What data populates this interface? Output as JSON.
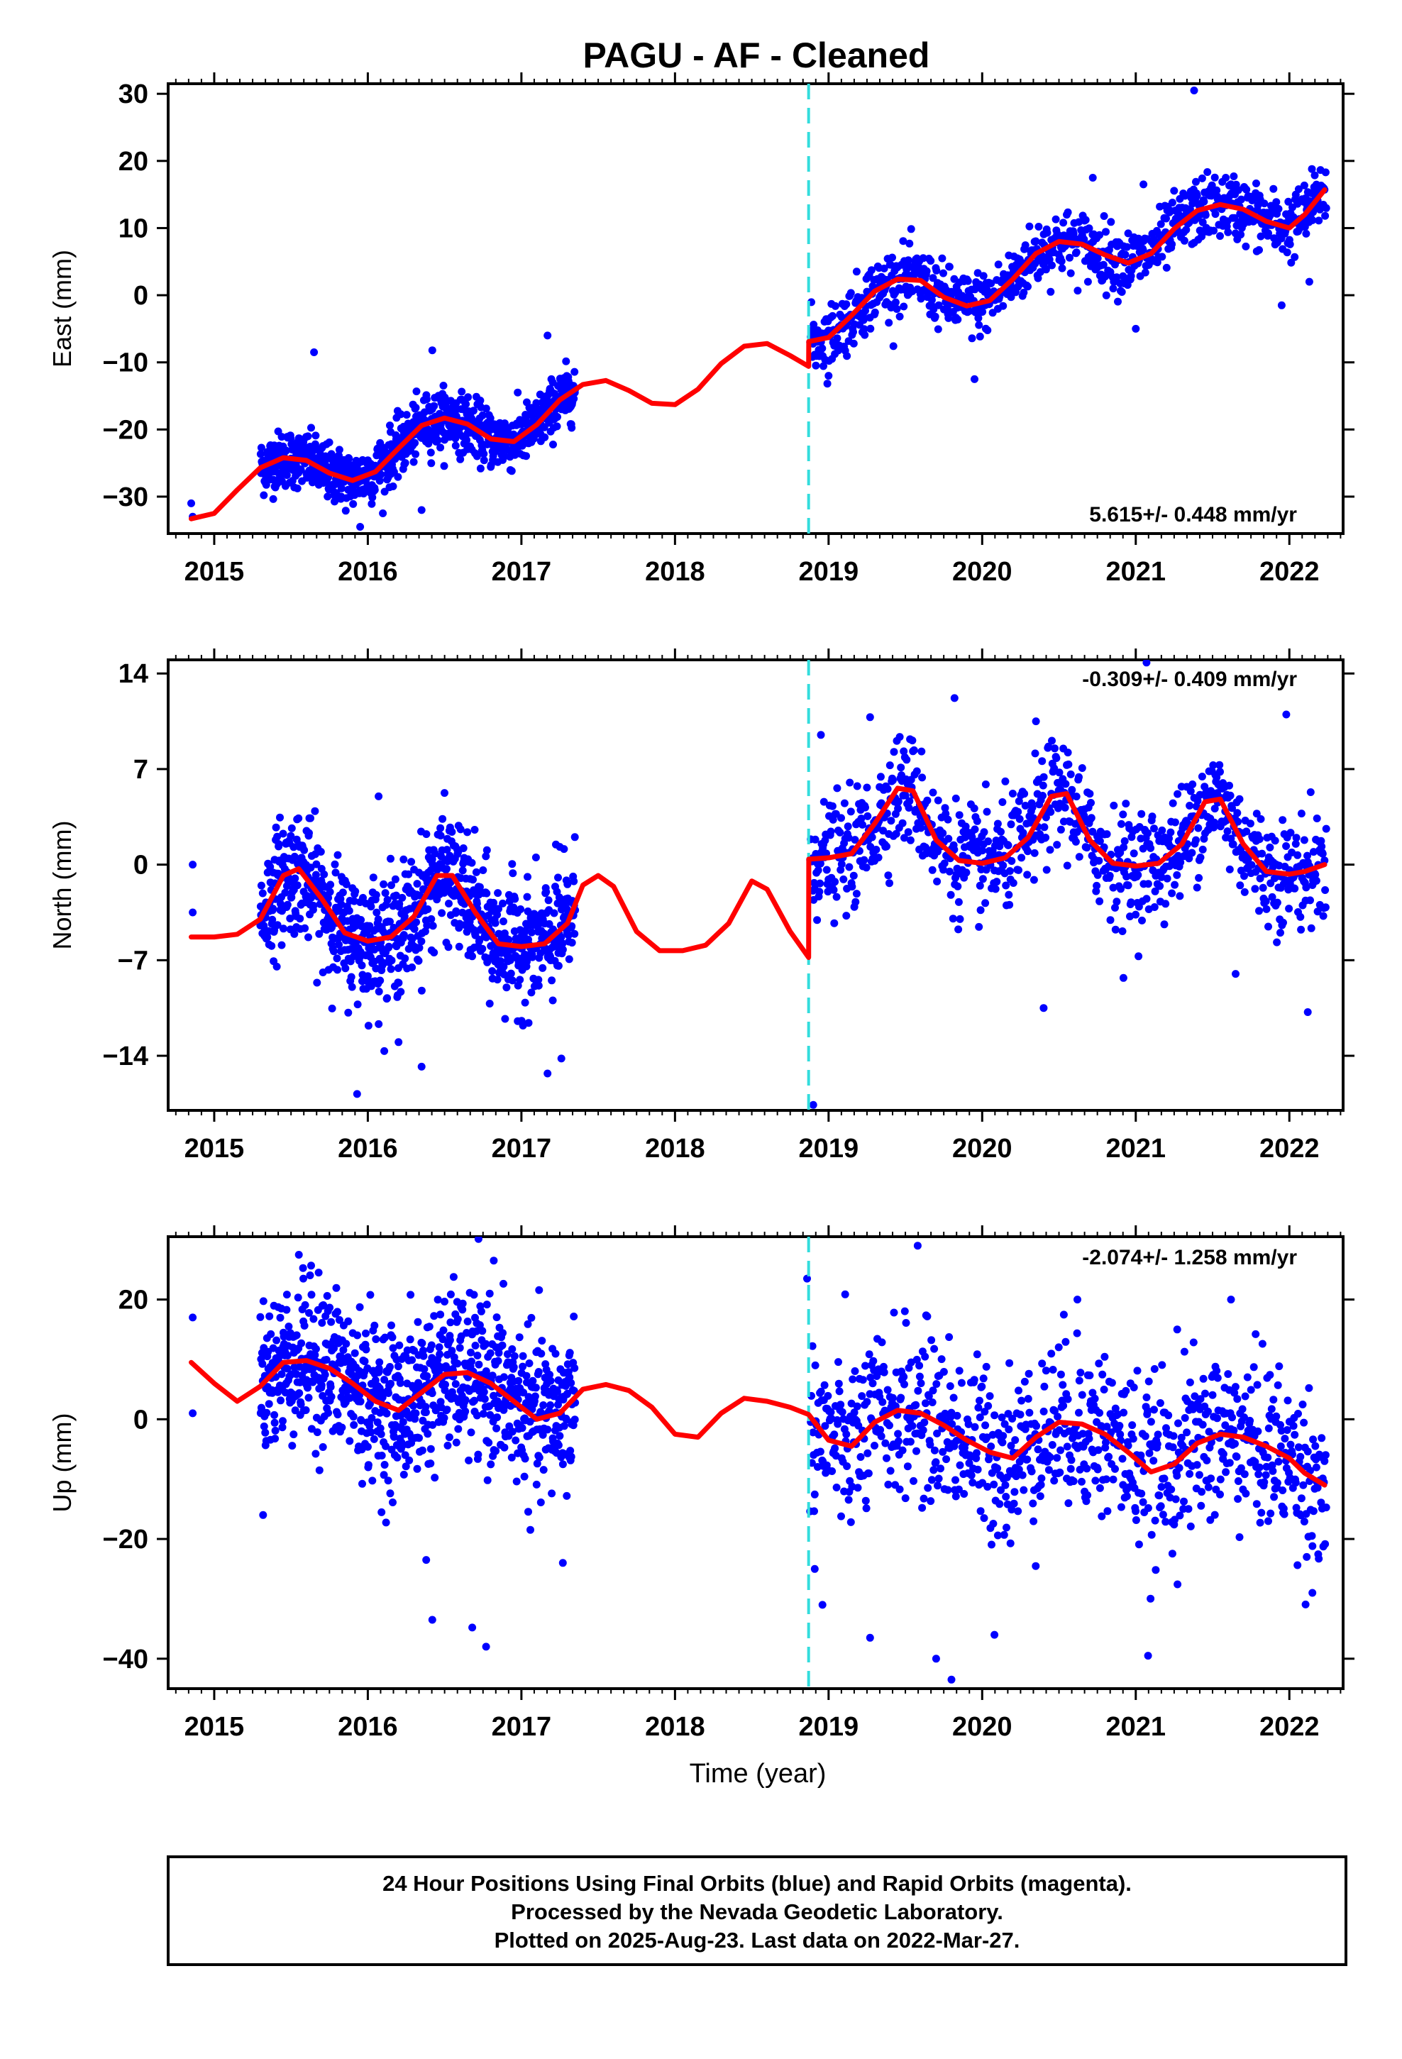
{
  "title": "PAGU  - AF - Cleaned",
  "xlabel": "Time (year)",
  "x_ticks": [
    "2015",
    "2016",
    "2017",
    "2018",
    "2019",
    "2020",
    "2021",
    "2022"
  ],
  "colors": {
    "points": "#0000ff",
    "model": "#ff0000",
    "offset": "#33dddd"
  },
  "chart_data": [
    {
      "type": "scatter",
      "component": "east",
      "ylabel": "East (mm)",
      "ylim": [
        -35.5,
        31.5
      ],
      "xlim": [
        2014.7,
        2022.35
      ],
      "y_ticks": [
        30,
        20,
        10,
        0,
        -10,
        -20,
        -30
      ],
      "y_tick_labels": [
        "30",
        "20",
        "10",
        "0",
        "−10",
        "−20",
        "−30"
      ],
      "rate_label": "5.615+/- 0.448 mm/yr",
      "offset_epoch": 2018.87,
      "model": {
        "name": "model",
        "x": [
          2014.85,
          2015.0,
          2015.15,
          2015.3,
          2015.45,
          2015.6,
          2015.75,
          2015.9,
          2016.05,
          2016.2,
          2016.35,
          2016.5,
          2016.65,
          2016.8,
          2016.95,
          2017.1,
          2017.25,
          2017.4,
          2017.55,
          2017.7,
          2017.85,
          2018.0,
          2018.15,
          2018.3,
          2018.45,
          2018.6,
          2018.75,
          2018.87,
          2018.871,
          2019.0,
          2019.15,
          2019.3,
          2019.45,
          2019.6,
          2019.75,
          2019.9,
          2020.05,
          2020.2,
          2020.35,
          2020.5,
          2020.65,
          2020.8,
          2020.95,
          2021.1,
          2021.25,
          2021.4,
          2021.55,
          2021.7,
          2021.85,
          2022.0,
          2022.1,
          2022.23
        ],
        "y": [
          -33.3,
          -32.5,
          -29.0,
          -25.7,
          -24.2,
          -24.6,
          -26.5,
          -27.6,
          -26.3,
          -22.8,
          -19.4,
          -18.3,
          -19.2,
          -21.4,
          -21.8,
          -19.3,
          -15.6,
          -13.3,
          -12.7,
          -14.2,
          -16.1,
          -16.3,
          -14.0,
          -10.2,
          -7.6,
          -7.2,
          -9.0,
          -10.6,
          -6.9,
          -6.3,
          -3.0,
          0.6,
          2.4,
          2.2,
          -0.3,
          -1.6,
          -0.8,
          2.4,
          6.2,
          8.0,
          7.6,
          6.0,
          4.8,
          6.2,
          9.9,
          12.6,
          13.5,
          12.8,
          11.0,
          10.0,
          12.0,
          15.7
        ]
      },
      "segments": [
        {
          "x0": 2015.3,
          "x1": 2017.35,
          "noise": 2.1
        },
        {
          "x0": 2018.88,
          "x1": 2022.24,
          "noise": 2.4
        }
      ],
      "outliers": [
        {
          "x": 2014.85,
          "y": -31.0
        },
        {
          "x": 2014.86,
          "y": -33.0
        },
        {
          "x": 2015.65,
          "y": -8.5
        },
        {
          "x": 2015.95,
          "y": -34.5
        },
        {
          "x": 2016.35,
          "y": -32.0
        },
        {
          "x": 2016.42,
          "y": -8.2
        },
        {
          "x": 2017.17,
          "y": -6.0
        },
        {
          "x": 2019.0,
          "y": -12.0
        },
        {
          "x": 2019.95,
          "y": -12.5
        },
        {
          "x": 2020.72,
          "y": 17.5
        },
        {
          "x": 2021.0,
          "y": -5.0
        },
        {
          "x": 2021.38,
          "y": 30.5
        },
        {
          "x": 2021.95,
          "y": -1.5
        },
        {
          "x": 2022.13,
          "y": 2.0
        },
        {
          "x": 2021.05,
          "y": 16.5
        }
      ]
    },
    {
      "type": "scatter",
      "component": "north",
      "ylabel": "North (mm)",
      "ylim": [
        -18.0,
        15.0
      ],
      "xlim": [
        2014.7,
        2022.35
      ],
      "y_ticks": [
        14,
        7,
        0,
        -7,
        -14
      ],
      "y_tick_labels": [
        "14",
        "7",
        "0",
        "−7",
        "−14"
      ],
      "rate_label": "-0.309+/- 0.409 mm/yr",
      "offset_epoch": 2018.87,
      "model": {
        "name": "model",
        "x": [
          2014.85,
          2015.0,
          2015.15,
          2015.3,
          2015.45,
          2015.55,
          2015.7,
          2015.85,
          2016.0,
          2016.15,
          2016.3,
          2016.45,
          2016.55,
          2016.7,
          2016.85,
          2017.0,
          2017.15,
          2017.3,
          2017.4,
          2017.5,
          2017.6,
          2017.75,
          2017.9,
          2018.05,
          2018.2,
          2018.35,
          2018.5,
          2018.6,
          2018.75,
          2018.87,
          2018.871,
          2019.0,
          2019.15,
          2019.3,
          2019.45,
          2019.55,
          2019.7,
          2019.85,
          2020.0,
          2020.15,
          2020.3,
          2020.45,
          2020.55,
          2020.7,
          2020.85,
          2021.0,
          2021.15,
          2021.3,
          2021.45,
          2021.55,
          2021.7,
          2021.85,
          2022.0,
          2022.1,
          2022.23
        ],
        "y": [
          -5.3,
          -5.3,
          -5.1,
          -4.0,
          -0.8,
          -0.3,
          -2.5,
          -5.0,
          -5.6,
          -5.3,
          -3.8,
          -0.8,
          -0.8,
          -3.5,
          -5.8,
          -6.0,
          -5.8,
          -4.3,
          -1.5,
          -0.8,
          -1.6,
          -4.9,
          -6.3,
          -6.3,
          -5.9,
          -4.3,
          -1.2,
          -1.8,
          -4.9,
          -6.8,
          0.4,
          0.5,
          0.8,
          3.0,
          5.6,
          5.4,
          1.8,
          0.3,
          0.1,
          0.5,
          2.0,
          5.0,
          5.2,
          1.8,
          0.1,
          -0.1,
          0.1,
          1.5,
          4.6,
          4.8,
          1.5,
          -0.5,
          -0.7,
          -0.5,
          0.0
        ]
      },
      "segments": [
        {
          "x0": 2015.3,
          "x1": 2017.35,
          "noise": 2.2
        },
        {
          "x0": 2018.88,
          "x1": 2022.24,
          "noise": 2.0
        }
      ],
      "outliers": [
        {
          "x": 2014.86,
          "y": 0.0
        },
        {
          "x": 2014.86,
          "y": -3.5
        },
        {
          "x": 2015.93,
          "y": -16.8
        },
        {
          "x": 2016.07,
          "y": 5.0
        },
        {
          "x": 2016.2,
          "y": -13.0
        },
        {
          "x": 2016.35,
          "y": -14.8
        },
        {
          "x": 2017.17,
          "y": -15.3
        },
        {
          "x": 2017.26,
          "y": -14.2
        },
        {
          "x": 2017.25,
          "y": 1.3
        },
        {
          "x": 2018.9,
          "y": -17.6
        },
        {
          "x": 2018.95,
          "y": 9.5
        },
        {
          "x": 2019.27,
          "y": 10.8
        },
        {
          "x": 2019.82,
          "y": 12.2
        },
        {
          "x": 2020.35,
          "y": 10.5
        },
        {
          "x": 2020.4,
          "y": -10.5
        },
        {
          "x": 2020.92,
          "y": -8.3
        },
        {
          "x": 2021.07,
          "y": 14.8
        },
        {
          "x": 2021.65,
          "y": -8.0
        },
        {
          "x": 2021.98,
          "y": 11.0
        },
        {
          "x": 2022.12,
          "y": -10.8
        }
      ]
    },
    {
      "type": "scatter",
      "component": "up",
      "ylabel": "Up (mm)",
      "ylim": [
        -45.0,
        30.5
      ],
      "xlim": [
        2014.7,
        2022.35
      ],
      "y_ticks": [
        20,
        0,
        -20,
        -40
      ],
      "y_tick_labels": [
        "20",
        "0",
        "−20",
        "−40"
      ],
      "rate_label": "-2.074+/- 1.258 mm/yr",
      "offset_epoch": 2018.87,
      "model": {
        "name": "model",
        "x": [
          2014.85,
          2015.0,
          2015.15,
          2015.3,
          2015.45,
          2015.6,
          2015.75,
          2015.9,
          2016.05,
          2016.2,
          2016.35,
          2016.5,
          2016.65,
          2016.8,
          2016.95,
          2017.1,
          2017.25,
          2017.4,
          2017.55,
          2017.7,
          2017.85,
          2018.0,
          2018.15,
          2018.3,
          2018.45,
          2018.6,
          2018.75,
          2018.87,
          2019.0,
          2019.15,
          2019.3,
          2019.45,
          2019.6,
          2019.75,
          2019.9,
          2020.05,
          2020.2,
          2020.35,
          2020.5,
          2020.65,
          2020.8,
          2020.95,
          2021.1,
          2021.25,
          2021.4,
          2021.55,
          2021.7,
          2021.85,
          2022.0,
          2022.1,
          2022.23
        ],
        "y": [
          9.5,
          6.0,
          3.0,
          5.5,
          9.5,
          9.8,
          8.5,
          6.0,
          3.0,
          1.5,
          4.5,
          7.5,
          7.8,
          6.0,
          3.0,
          0.0,
          1.0,
          5.0,
          5.8,
          4.8,
          2.0,
          -2.5,
          -3.0,
          1.0,
          3.5,
          3.0,
          2.0,
          0.8,
          -3.5,
          -4.5,
          -0.5,
          1.5,
          1.0,
          -1.0,
          -3.5,
          -5.5,
          -6.5,
          -3.0,
          -0.5,
          -0.8,
          -2.5,
          -5.5,
          -8.8,
          -7.5,
          -4.0,
          -2.5,
          -3.0,
          -4.5,
          -6.5,
          -9.0,
          -11.0
        ]
      },
      "segments": [
        {
          "x0": 2015.3,
          "x1": 2017.35,
          "noise": 6.5
        },
        {
          "x0": 2018.88,
          "x1": 2022.24,
          "noise": 7.0
        }
      ],
      "outliers": [
        {
          "x": 2014.86,
          "y": 17.0
        },
        {
          "x": 2014.86,
          "y": 1.0
        },
        {
          "x": 2015.58,
          "y": 23.5
        },
        {
          "x": 2015.68,
          "y": 24.5
        },
        {
          "x": 2016.38,
          "y": -23.5
        },
        {
          "x": 2016.42,
          "y": -33.5
        },
        {
          "x": 2016.68,
          "y": -34.8
        },
        {
          "x": 2016.77,
          "y": -38.0
        },
        {
          "x": 2016.82,
          "y": 26.5
        },
        {
          "x": 2017.27,
          "y": -24.0
        },
        {
          "x": 2018.86,
          "y": 23.5
        },
        {
          "x": 2018.91,
          "y": -25.0
        },
        {
          "x": 2018.96,
          "y": -31.0
        },
        {
          "x": 2019.27,
          "y": -36.5
        },
        {
          "x": 2019.58,
          "y": 29.0
        },
        {
          "x": 2019.7,
          "y": -40.0
        },
        {
          "x": 2019.8,
          "y": -43.5
        },
        {
          "x": 2020.08,
          "y": -36.0
        },
        {
          "x": 2020.62,
          "y": 20.0
        },
        {
          "x": 2021.08,
          "y": -39.5
        },
        {
          "x": 2021.27,
          "y": 15.0
        },
        {
          "x": 2021.62,
          "y": 20.0
        },
        {
          "x": 2022.15,
          "y": -29.0
        }
      ]
    }
  ],
  "footer": {
    "line1": "24 Hour Positions Using Final Orbits (blue) and Rapid Orbits (magenta).",
    "line2": "Processed by the Nevada Geodetic Laboratory.",
    "line3": "Plotted on 2025-Aug-23. Last data on 2022-Mar-27."
  }
}
